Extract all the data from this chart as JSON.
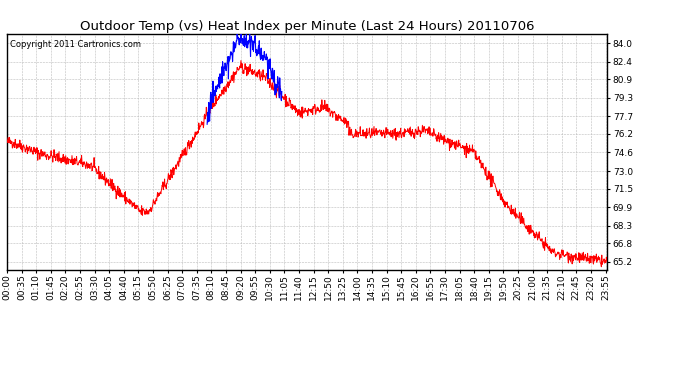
{
  "title": "Outdoor Temp (vs) Heat Index per Minute (Last 24 Hours) 20110706",
  "copyright": "Copyright 2011 Cartronics.com",
  "yticks": [
    65.2,
    66.8,
    68.3,
    69.9,
    71.5,
    73.0,
    74.6,
    76.2,
    77.7,
    79.3,
    80.9,
    82.4,
    84.0
  ],
  "ymin": 64.5,
  "ymax": 84.8,
  "bg_color": "#ffffff",
  "grid_color": "#bbbbbb",
  "temp_color": "red",
  "heat_color": "blue",
  "title_fontsize": 9.5,
  "copyright_fontsize": 6.0,
  "tick_fontsize": 6.5,
  "n_points": 1440,
  "xtick_interval": 35,
  "xtick_labels": [
    "00:00",
    "00:35",
    "01:10",
    "01:45",
    "02:20",
    "02:55",
    "03:30",
    "04:05",
    "04:40",
    "05:15",
    "05:50",
    "06:25",
    "07:00",
    "07:35",
    "08:10",
    "08:45",
    "09:20",
    "09:55",
    "10:30",
    "11:05",
    "11:40",
    "12:15",
    "12:50",
    "13:25",
    "14:00",
    "14:35",
    "15:10",
    "15:45",
    "16:20",
    "16:55",
    "17:30",
    "18:05",
    "18:40",
    "19:15",
    "19:50",
    "20:25",
    "21:00",
    "21:35",
    "22:10",
    "22:45",
    "23:20",
    "23:55"
  ]
}
